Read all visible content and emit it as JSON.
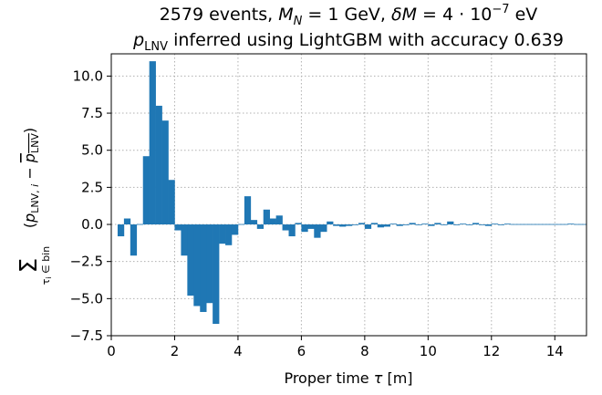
{
  "chart_data": {
    "type": "bar",
    "title_line1": "2579 events, M_N = 1 GeV, δM = 4·10^−7 eV",
    "title_line2": "p_LNV inferred using LightGBM with accuracy 0.639",
    "xlabel": "Proper time τ [m]",
    "ylabel": "Σ_{τ_i ∈ bin} (p_{LNV,i} − mean(p_LNV))",
    "xlim": [
      0,
      15
    ],
    "ylim": [
      -7.5,
      11.5
    ],
    "grid": true,
    "bin_width": 0.2,
    "bar_color": "#1f77b4",
    "x_ticks": [
      0,
      2,
      4,
      6,
      8,
      10,
      12,
      14
    ],
    "x_tick_labels": [
      "0",
      "2",
      "4",
      "6",
      "8",
      "10",
      "12",
      "14"
    ],
    "y_ticks": [
      -7.5,
      -5.0,
      -2.5,
      0.0,
      2.5,
      5.0,
      7.5,
      10.0
    ],
    "y_tick_labels": [
      "−7.5",
      "−5.0",
      "−2.5",
      "0.0",
      "2.5",
      "5.0",
      "7.5",
      "10.0"
    ],
    "bins": [
      {
        "x": 0.3,
        "y": -0.8
      },
      {
        "x": 0.5,
        "y": 0.4
      },
      {
        "x": 0.7,
        "y": -2.1
      },
      {
        "x": 0.9,
        "y": 0.0
      },
      {
        "x": 1.1,
        "y": 4.6
      },
      {
        "x": 1.3,
        "y": 11.0
      },
      {
        "x": 1.5,
        "y": 8.0
      },
      {
        "x": 1.7,
        "y": 7.0
      },
      {
        "x": 1.9,
        "y": 3.0
      },
      {
        "x": 2.1,
        "y": -0.4
      },
      {
        "x": 2.3,
        "y": -2.1
      },
      {
        "x": 2.5,
        "y": -4.8
      },
      {
        "x": 2.7,
        "y": -5.5
      },
      {
        "x": 2.9,
        "y": -5.9
      },
      {
        "x": 3.1,
        "y": -5.3
      },
      {
        "x": 3.3,
        "y": -6.7
      },
      {
        "x": 3.5,
        "y": -1.3
      },
      {
        "x": 3.7,
        "y": -1.4
      },
      {
        "x": 3.9,
        "y": -0.7
      },
      {
        "x": 4.1,
        "y": 0.0
      },
      {
        "x": 4.3,
        "y": 1.9
      },
      {
        "x": 4.5,
        "y": 0.3
      },
      {
        "x": 4.7,
        "y": -0.3
      },
      {
        "x": 4.9,
        "y": 1.0
      },
      {
        "x": 5.1,
        "y": 0.4
      },
      {
        "x": 5.3,
        "y": 0.6
      },
      {
        "x": 5.5,
        "y": -0.4
      },
      {
        "x": 5.7,
        "y": -0.8
      },
      {
        "x": 5.9,
        "y": 0.1
      },
      {
        "x": 6.1,
        "y": -0.5
      },
      {
        "x": 6.3,
        "y": -0.3
      },
      {
        "x": 6.5,
        "y": -0.9
      },
      {
        "x": 6.7,
        "y": -0.5
      },
      {
        "x": 6.9,
        "y": 0.2
      },
      {
        "x": 7.1,
        "y": -0.1
      },
      {
        "x": 7.3,
        "y": -0.15
      },
      {
        "x": 7.5,
        "y": -0.1
      },
      {
        "x": 7.7,
        "y": -0.05
      },
      {
        "x": 7.9,
        "y": 0.1
      },
      {
        "x": 8.1,
        "y": -0.3
      },
      {
        "x": 8.3,
        "y": 0.1
      },
      {
        "x": 8.5,
        "y": -0.2
      },
      {
        "x": 8.7,
        "y": -0.15
      },
      {
        "x": 8.9,
        "y": 0.05
      },
      {
        "x": 9.1,
        "y": -0.1
      },
      {
        "x": 9.3,
        "y": -0.05
      },
      {
        "x": 9.5,
        "y": 0.1
      },
      {
        "x": 9.7,
        "y": -0.05
      },
      {
        "x": 9.9,
        "y": 0.05
      },
      {
        "x": 10.1,
        "y": -0.1
      },
      {
        "x": 10.3,
        "y": 0.1
      },
      {
        "x": 10.5,
        "y": -0.05
      },
      {
        "x": 10.7,
        "y": 0.2
      },
      {
        "x": 10.9,
        "y": -0.05
      },
      {
        "x": 11.1,
        "y": 0.05
      },
      {
        "x": 11.3,
        "y": -0.05
      },
      {
        "x": 11.5,
        "y": 0.1
      },
      {
        "x": 11.7,
        "y": -0.05
      },
      {
        "x": 11.9,
        "y": -0.1
      },
      {
        "x": 12.1,
        "y": 0.05
      },
      {
        "x": 12.3,
        "y": -0.05
      },
      {
        "x": 12.5,
        "y": 0.05
      },
      {
        "x": 12.7,
        "y": -0.03
      },
      {
        "x": 12.9,
        "y": 0.03
      },
      {
        "x": 13.1,
        "y": -0.03
      },
      {
        "x": 13.3,
        "y": 0.03
      },
      {
        "x": 13.5,
        "y": -0.03
      },
      {
        "x": 13.7,
        "y": 0.03
      },
      {
        "x": 13.9,
        "y": -0.02
      },
      {
        "x": 14.1,
        "y": 0.02
      },
      {
        "x": 14.3,
        "y": -0.02
      },
      {
        "x": 14.5,
        "y": 0.05
      },
      {
        "x": 14.7,
        "y": 0.02
      },
      {
        "x": 14.9,
        "y": -0.02
      }
    ]
  }
}
